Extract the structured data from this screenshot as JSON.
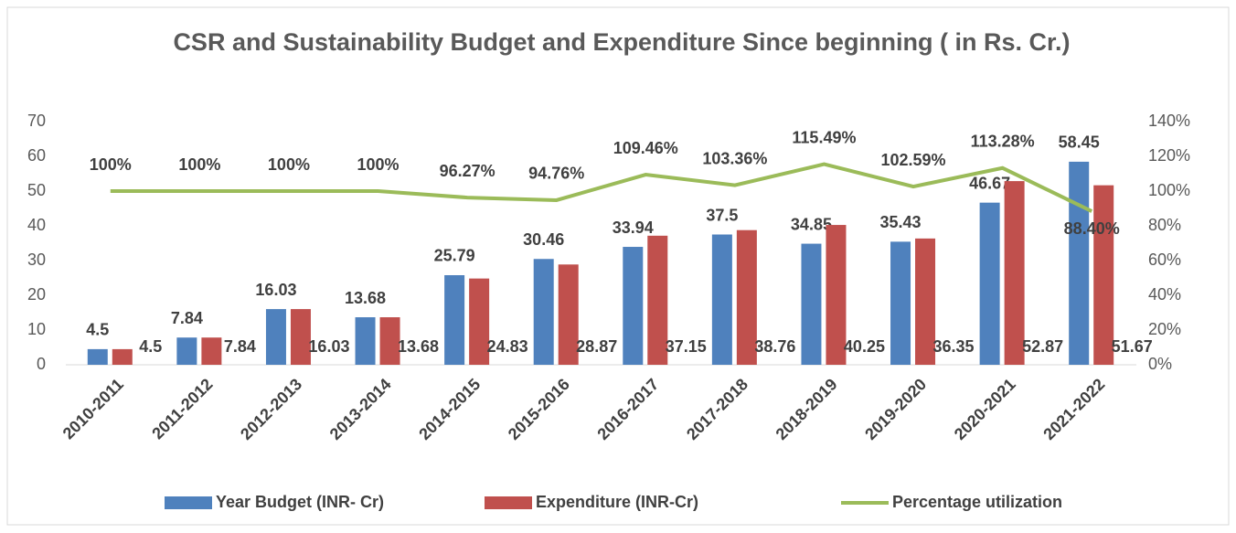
{
  "chart_data": {
    "type": "bar",
    "title": "CSR and Sustainability Budget and Expenditure Since beginning  ( in Rs. Cr.)",
    "categories": [
      "2010-2011",
      "2011-2012",
      "2012-2013",
      "2013-2014",
      "2014-2015",
      "2015-2016",
      "2016-2017",
      "2017-2018",
      "2018-2019",
      "2019-2020",
      "2020-2021",
      "2021-2022"
    ],
    "series": [
      {
        "name": "Year Budget (INR- Cr)",
        "color": "#4f81bd",
        "values": [
          4.5,
          7.84,
          16.03,
          13.68,
          25.79,
          30.46,
          33.94,
          37.5,
          34.85,
          35.43,
          46.67,
          58.45
        ]
      },
      {
        "name": "Expenditure (INR-Cr)",
        "color": "#c0504d",
        "values": [
          4.5,
          7.84,
          16.03,
          13.68,
          24.83,
          28.87,
          37.15,
          38.76,
          40.25,
          36.35,
          52.87,
          51.67
        ]
      },
      {
        "name": "Percentage utilization",
        "color": "#9bbb59",
        "type": "line",
        "axis": "y2",
        "values": [
          100,
          100,
          100,
          100,
          96.27,
          94.76,
          109.46,
          103.36,
          115.49,
          102.59,
          113.28,
          88.4
        ],
        "value_labels": [
          "100%",
          "100%",
          "100%",
          "100%",
          "96.27%",
          "94.76%",
          "109.46%",
          "103.36%",
          "115.49%",
          "102.59%",
          "113.28%",
          "88.40%"
        ]
      }
    ],
    "ylim": [
      0,
      70
    ],
    "yticks": [
      0,
      10,
      20,
      30,
      40,
      50,
      60,
      70
    ],
    "y2lim": [
      0,
      140
    ],
    "y2ticks": [
      {
        "value": 0,
        "label": "0%"
      },
      {
        "value": 20,
        "label": "20%"
      },
      {
        "value": 40,
        "label": "40%"
      },
      {
        "value": 60,
        "label": "60%"
      },
      {
        "value": 80,
        "label": "80%"
      },
      {
        "value": 100,
        "label": "100%"
      },
      {
        "value": 120,
        "label": "120%"
      },
      {
        "value": 140,
        "label": "140%"
      }
    ],
    "legend": "bottom"
  }
}
